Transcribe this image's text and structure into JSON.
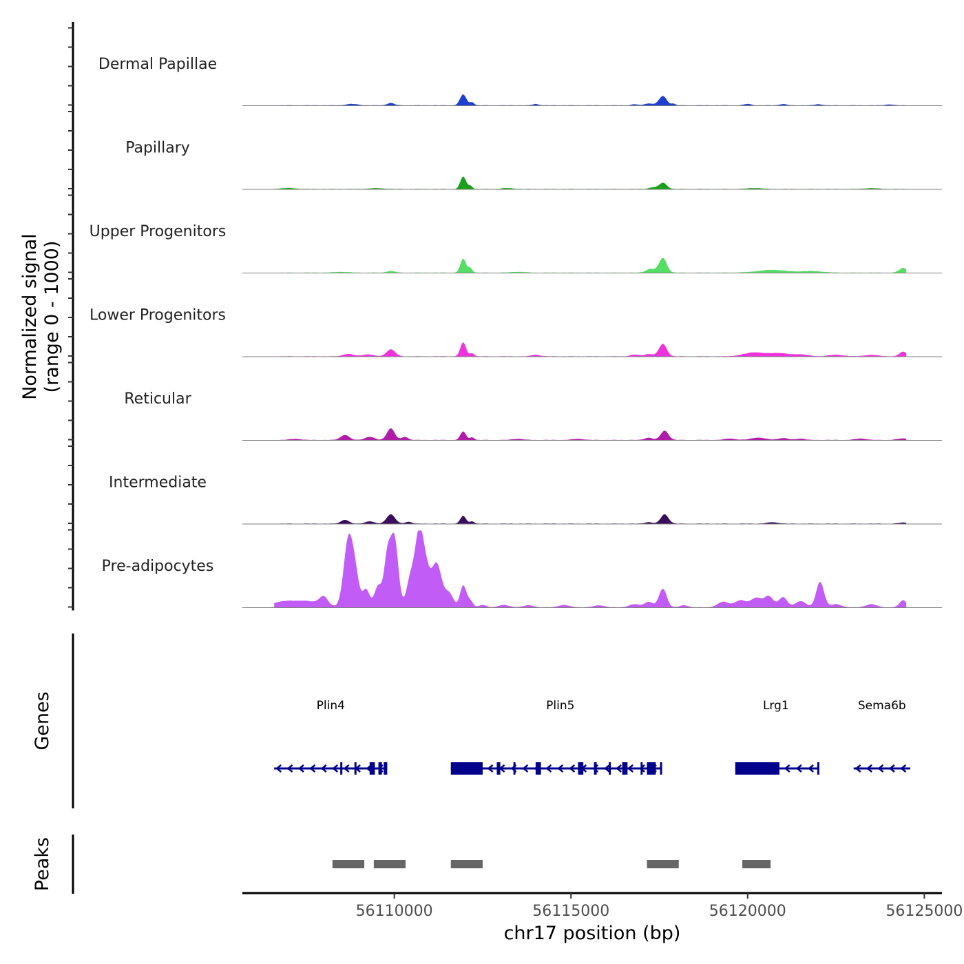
{
  "chart_data": {
    "type": "area",
    "chromosome": "chr17",
    "xlabel": "chr17 position (bp)",
    "ylabel_line1": "Normalized signal",
    "ylabel_line2": "(range 0 - 1000)",
    "xlim": [
      56105700,
      56125500
    ],
    "x_ticks": [
      {
        "value": 56110000,
        "label": "56110000"
      },
      {
        "value": 56115000,
        "label": "56115000"
      },
      {
        "value": 56120000,
        "label": "56120000"
      },
      {
        "value": 56125000,
        "label": "56125000"
      }
    ],
    "signal_range": [
      0,
      1000
    ],
    "signal_x_start": 56106600,
    "signal_x_end": 56124500,
    "tracks": [
      {
        "name": "Dermal Papillae",
        "color": "#1f3fd0",
        "peaks": [
          [
            56108800,
            18,
            160
          ],
          [
            56109900,
            30,
            100
          ],
          [
            56111950,
            140,
            90
          ],
          [
            56112200,
            40,
            60
          ],
          [
            56114000,
            18,
            80
          ],
          [
            56116800,
            14,
            80
          ],
          [
            56117200,
            24,
            120
          ],
          [
            56117600,
            120,
            110
          ],
          [
            56117900,
            20,
            60
          ],
          [
            56120000,
            18,
            100
          ],
          [
            56121000,
            16,
            100
          ],
          [
            56122000,
            14,
            100
          ],
          [
            56124000,
            12,
            100
          ]
        ]
      },
      {
        "name": "Papillary",
        "color": "#18a018",
        "peaks": [
          [
            56107000,
            12,
            200
          ],
          [
            56109500,
            10,
            200
          ],
          [
            56111950,
            160,
            80
          ],
          [
            56112150,
            40,
            60
          ],
          [
            56113200,
            12,
            150
          ],
          [
            56117600,
            80,
            110
          ],
          [
            56117300,
            20,
            100
          ],
          [
            56120200,
            12,
            200
          ],
          [
            56123500,
            10,
            200
          ]
        ]
      },
      {
        "name": "Upper Progenitors",
        "color": "#55dd66",
        "peaks": [
          [
            56108500,
            10,
            200
          ],
          [
            56109900,
            22,
            110
          ],
          [
            56111950,
            180,
            80
          ],
          [
            56112150,
            60,
            60
          ],
          [
            56117600,
            190,
            110
          ],
          [
            56117250,
            50,
            120
          ],
          [
            56120700,
            36,
            400
          ],
          [
            56121800,
            20,
            300
          ],
          [
            56124400,
            60,
            110
          ],
          [
            56113500,
            10,
            200
          ]
        ]
      },
      {
        "name": "Lower Progenitors",
        "color": "#ee33dd",
        "peaks": [
          [
            56108700,
            30,
            150
          ],
          [
            56109250,
            25,
            150
          ],
          [
            56109900,
            90,
            120
          ],
          [
            56111950,
            180,
            80
          ],
          [
            56112200,
            40,
            60
          ],
          [
            56114000,
            20,
            120
          ],
          [
            56116800,
            22,
            120
          ],
          [
            56117200,
            30,
            120
          ],
          [
            56117600,
            160,
            110
          ],
          [
            56120200,
            50,
            300
          ],
          [
            56120900,
            40,
            250
          ],
          [
            56121500,
            25,
            200
          ],
          [
            56122500,
            20,
            200
          ],
          [
            56123500,
            18,
            200
          ],
          [
            56124400,
            60,
            100
          ]
        ]
      },
      {
        "name": "Reticular",
        "color": "#b01ca8",
        "peaks": [
          [
            56107200,
            14,
            150
          ],
          [
            56108600,
            65,
            120
          ],
          [
            56109300,
            40,
            130
          ],
          [
            56109900,
            150,
            110
          ],
          [
            56110300,
            40,
            90
          ],
          [
            56111950,
            110,
            80
          ],
          [
            56112200,
            35,
            60
          ],
          [
            56113500,
            14,
            150
          ],
          [
            56115200,
            14,
            150
          ],
          [
            56117200,
            30,
            110
          ],
          [
            56117650,
            120,
            110
          ],
          [
            56119500,
            18,
            150
          ],
          [
            56120300,
            30,
            200
          ],
          [
            56121000,
            24,
            150
          ],
          [
            56121500,
            18,
            120
          ],
          [
            56123200,
            18,
            150
          ],
          [
            56124400,
            20,
            150
          ]
        ]
      },
      {
        "name": "Intermediate",
        "color": "#3a0e5c",
        "peaks": [
          [
            56108600,
            50,
            110
          ],
          [
            56109300,
            30,
            120
          ],
          [
            56109900,
            120,
            120
          ],
          [
            56110400,
            25,
            90
          ],
          [
            56111950,
            100,
            80
          ],
          [
            56112200,
            30,
            60
          ],
          [
            56117650,
            120,
            110
          ],
          [
            56117200,
            20,
            100
          ],
          [
            56120700,
            18,
            150
          ],
          [
            56124400,
            14,
            120
          ]
        ]
      },
      {
        "name": "Pre-adipocytes",
        "color": "#c25cf7",
        "peaks": [
          [
            56106800,
            60,
            300
          ],
          [
            56107500,
            80,
            400
          ],
          [
            56108000,
            110,
            120
          ],
          [
            56108700,
            870,
            130
          ],
          [
            56108900,
            350,
            110
          ],
          [
            56109200,
            230,
            100
          ],
          [
            56109550,
            280,
            110
          ],
          [
            56109800,
            600,
            90
          ],
          [
            56110000,
            900,
            110
          ],
          [
            56110450,
            350,
            110
          ],
          [
            56110700,
            920,
            120
          ],
          [
            56110900,
            400,
            120
          ],
          [
            56111200,
            560,
            140
          ],
          [
            56111550,
            180,
            120
          ],
          [
            56111950,
            280,
            90
          ],
          [
            56112150,
            80,
            80
          ],
          [
            56112500,
            30,
            100
          ],
          [
            56113100,
            30,
            150
          ],
          [
            56113800,
            25,
            150
          ],
          [
            56114800,
            30,
            150
          ],
          [
            56115800,
            25,
            150
          ],
          [
            56116800,
            40,
            150
          ],
          [
            56117200,
            70,
            120
          ],
          [
            56117600,
            240,
            110
          ],
          [
            56118200,
            25,
            120
          ],
          [
            56119300,
            70,
            150
          ],
          [
            56119800,
            90,
            180
          ],
          [
            56120250,
            120,
            150
          ],
          [
            56120600,
            140,
            130
          ],
          [
            56121000,
            130,
            120
          ],
          [
            56121500,
            80,
            150
          ],
          [
            56122050,
            330,
            110
          ],
          [
            56122500,
            40,
            150
          ],
          [
            56123500,
            40,
            150
          ],
          [
            56124400,
            90,
            100
          ]
        ]
      }
    ],
    "genes_track_label": "Genes",
    "genes": [
      {
        "name": "Plin4",
        "label_x": 56108200,
        "start": 56106600,
        "end": 56109800,
        "exons": [
          [
            56109300,
            56109450
          ],
          [
            56109550,
            56109650
          ],
          [
            56109700,
            56109800
          ]
        ],
        "ticks": [
          56108500,
          56108900
        ]
      },
      {
        "name": "Plin5",
        "label_x": 56114700,
        "start": 56111600,
        "end": 56117550,
        "exons": [
          [
            56111600,
            56112500
          ],
          [
            56112900,
            56113000
          ],
          [
            56114000,
            56114150
          ],
          [
            56115200,
            56115350
          ],
          [
            56115650,
            56115720
          ],
          [
            56116450,
            56116600
          ],
          [
            56117150,
            56117400
          ]
        ],
        "ticks": [
          56113400,
          56116100,
          56117000,
          56117550
        ]
      },
      {
        "name": "Lrg1",
        "label_x": 56120800,
        "start": 56119650,
        "end": 56122000,
        "exons": [
          [
            56119650,
            56120900
          ]
        ],
        "ticks": [
          56122000
        ]
      },
      {
        "name": "Sema6b",
        "label_x": 56123800,
        "start": 56123000,
        "end": 56124600,
        "exons": [],
        "ticks": []
      }
    ],
    "peaks_track_label": "Peaks",
    "peak_regions": [
      [
        56108250,
        56109150
      ],
      [
        56109420,
        56110320
      ],
      [
        56111600,
        56112500
      ],
      [
        56117150,
        56118050
      ],
      [
        56119850,
        56120650
      ]
    ]
  }
}
